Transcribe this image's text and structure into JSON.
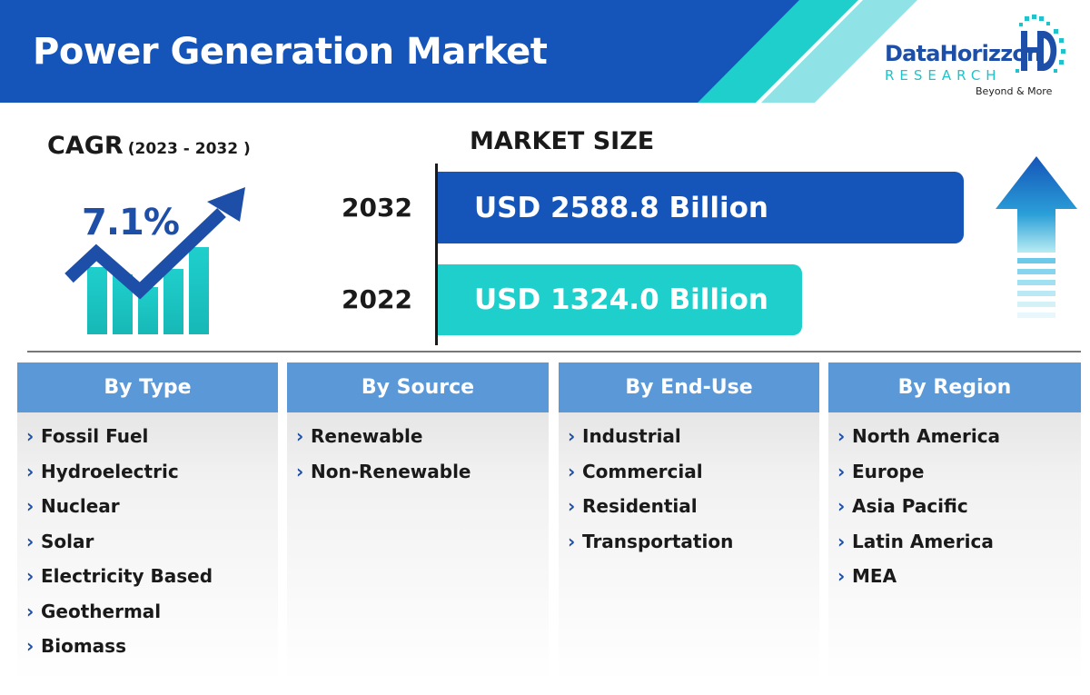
{
  "title": "Power Generation Market",
  "colors": {
    "header_blue": "#1554b8",
    "teal": "#1fcfcc",
    "segment_header": "#5a98d8",
    "dark_blue_text": "#1d4fa8"
  },
  "logo": {
    "name": "DataHorizzon",
    "sub": "RESEARCH",
    "tagline": "Beyond & More"
  },
  "cagr": {
    "label": "CAGR",
    "period": "(2023 - 2032 )",
    "value": "7.1%",
    "icon": "growth-chart-icon"
  },
  "market_size": {
    "title": "MARKET SIZE",
    "rows": [
      {
        "year": "2032",
        "label": "USD 2588.8 Billion",
        "value": 2588.8
      },
      {
        "year": "2022",
        "label": "USD 1324.0 Billion",
        "value": 1324.0
      }
    ],
    "icon": "up-arrow-icon"
  },
  "segments": [
    {
      "title": "By Type",
      "items": [
        "Fossil Fuel",
        "Hydroelectric",
        "Nuclear",
        "Solar",
        "Electricity Based",
        "Geothermal",
        "Biomass"
      ]
    },
    {
      "title": "By Source",
      "items": [
        "Renewable",
        "Non-Renewable"
      ]
    },
    {
      "title": "By End-Use",
      "items": [
        "Industrial",
        "Commercial",
        "Residential",
        "Transportation"
      ]
    },
    {
      "title": "By Region",
      "items": [
        "North America",
        "Europe",
        "Asia Pacific",
        "Latin America",
        "MEA"
      ]
    }
  ],
  "chevron": "›"
}
